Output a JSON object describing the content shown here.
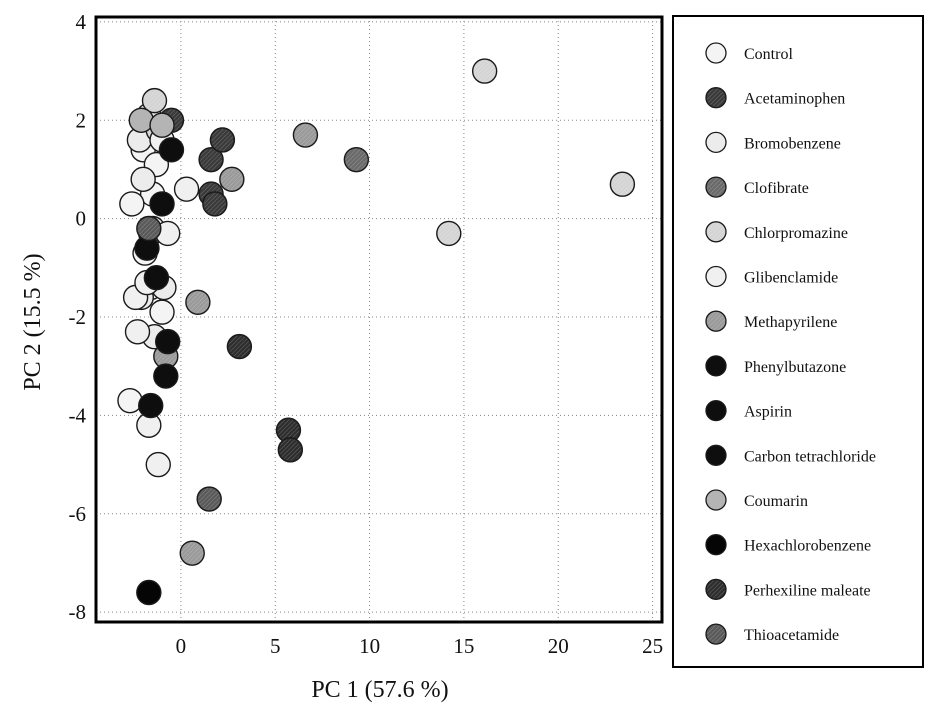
{
  "chart_data": {
    "type": "scatter",
    "xlabel": "PC 1   (57.6 %)",
    "ylabel": "PC 2 (15.5 %)",
    "xlim": [
      -4.5,
      25.5
    ],
    "ylim": [
      -8.2,
      4.1
    ],
    "xticks": [
      0,
      5,
      10,
      15,
      20,
      25
    ],
    "yticks": [
      -8,
      -6,
      -4,
      -2,
      0,
      2,
      4
    ],
    "grid": true,
    "legend_placement": "right, outside plot",
    "series": [
      {
        "name": "Control",
        "color": "#f4f4f4",
        "hatch": false,
        "points": [
          [
            -2.0,
            1.4
          ],
          [
            -1.5,
            0.5
          ],
          [
            -2.6,
            0.3
          ],
          [
            -1.6,
            -1.4
          ],
          [
            -2.7,
            -3.7
          ],
          [
            -1.0,
            -1.9
          ],
          [
            -1.3,
            1.1
          ],
          [
            -1.9,
            -0.7
          ]
        ]
      },
      {
        "name": "Acetaminophen",
        "color": "#3a3a3a",
        "hatch": true,
        "points": [
          [
            1.6,
            1.2
          ],
          [
            2.2,
            1.6
          ],
          [
            1.6,
            0.5
          ],
          [
            1.8,
            0.3
          ],
          [
            -1.5,
            1.8
          ],
          [
            -0.5,
            2.0
          ]
        ]
      },
      {
        "name": "Bromobenzene",
        "color": "#ececec",
        "hatch": false,
        "points": [
          [
            -2.2,
            1.6
          ],
          [
            -1.7,
            2.1
          ],
          [
            -2.0,
            0.8
          ],
          [
            -1.4,
            -2.4
          ],
          [
            -2.1,
            -1.6
          ],
          [
            -1.5,
            -0.2
          ],
          [
            -0.9,
            -1.4
          ]
        ]
      },
      {
        "name": "Clofibrate",
        "color": "#6a6a6a",
        "hatch": true,
        "points": [
          [
            9.3,
            1.2
          ],
          [
            -1.6,
            -0.3
          ]
        ]
      },
      {
        "name": "Chlorpromazine",
        "color": "#d4d4d4",
        "hatch": true,
        "points": [
          [
            16.1,
            3.0
          ],
          [
            23.4,
            0.7
          ],
          [
            14.2,
            -0.3
          ],
          [
            -1.2,
            1.8
          ],
          [
            -1.4,
            2.4
          ]
        ]
      },
      {
        "name": "Glibenclamide",
        "color": "#f0f0f0",
        "hatch": false,
        "points": [
          [
            0.3,
            0.6
          ],
          [
            -2.3,
            -2.3
          ],
          [
            -1.7,
            -4.2
          ],
          [
            -1.2,
            -5.0
          ],
          [
            -0.7,
            -0.3
          ],
          [
            -2.4,
            -1.6
          ],
          [
            -1.8,
            -1.3
          ],
          [
            -1.0,
            1.6
          ]
        ]
      },
      {
        "name": "Methapyrilene",
        "color": "#9a9a9a",
        "hatch": true,
        "points": [
          [
            6.6,
            1.7
          ],
          [
            2.7,
            0.8
          ],
          [
            0.9,
            -1.7
          ],
          [
            -0.8,
            -2.8
          ],
          [
            0.6,
            -6.8
          ]
        ]
      },
      {
        "name": "Phenylbutazone",
        "color": "#0e0e0e",
        "hatch": false,
        "points": [
          [
            -1.3,
            -1.2
          ],
          [
            -0.8,
            -3.2
          ]
        ]
      },
      {
        "name": "Aspirin",
        "color": "#0e0e0e",
        "hatch": false,
        "points": [
          [
            -1.6,
            -3.8
          ],
          [
            -0.7,
            -2.5
          ]
        ]
      },
      {
        "name": "Carbon tetrachloride",
        "color": "#0e0e0e",
        "hatch": false,
        "points": [
          [
            -0.5,
            1.4
          ],
          [
            -1.8,
            -0.6
          ],
          [
            -1.0,
            0.3
          ]
        ]
      },
      {
        "name": "Coumarin",
        "color": "#b4b4b4",
        "hatch": false,
        "points": [
          [
            -2.1,
            2.0
          ],
          [
            -1.0,
            1.9
          ]
        ]
      },
      {
        "name": "Hexachlorobenzene",
        "color": "#050505",
        "hatch": false,
        "points": [
          [
            -1.7,
            -7.6
          ]
        ]
      },
      {
        "name": "Perhexiline maleate",
        "color": "#2e2e2e",
        "hatch": true,
        "points": [
          [
            3.1,
            -2.6
          ],
          [
            5.7,
            -4.3
          ],
          [
            5.8,
            -4.7
          ]
        ]
      },
      {
        "name": "Thioacetamide",
        "color": "#5a5a5a",
        "hatch": true,
        "points": [
          [
            1.5,
            -5.7
          ],
          [
            -1.7,
            -0.2
          ]
        ]
      }
    ]
  }
}
